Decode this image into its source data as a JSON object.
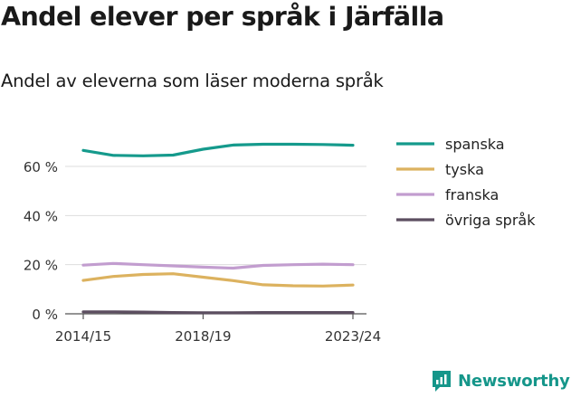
{
  "title": "Andel elever per språk i Järfälla",
  "subtitle": "Andel av eleverna som läser moderna språk",
  "brand": "Newsworthy",
  "chart_data": {
    "type": "line",
    "x": [
      "2014/15",
      "2015/16",
      "2016/17",
      "2017/18",
      "2018/19",
      "2019/20",
      "2020/21",
      "2021/22",
      "2022/23",
      "2023/24"
    ],
    "x_tick_labels": [
      "2014/15",
      "2018/19",
      "2023/24"
    ],
    "y_ticks": [
      0,
      20,
      40,
      60
    ],
    "y_tick_labels": [
      "0 %",
      "20 %",
      "40 %",
      "60 %"
    ],
    "ylim": [
      0,
      72
    ],
    "grid": true,
    "legend_position": "right",
    "series": [
      {
        "name": "spanska",
        "color": "#159a8c",
        "values": [
          66.5,
          64.5,
          64.3,
          64.6,
          67.0,
          68.7,
          69.0,
          69.0,
          68.9,
          68.6
        ]
      },
      {
        "name": "tyska",
        "color": "#dcb25f",
        "values": [
          13.6,
          15.2,
          16.0,
          16.3,
          14.9,
          13.5,
          11.8,
          11.4,
          11.3,
          11.7
        ]
      },
      {
        "name": "franska",
        "color": "#c29dcf",
        "values": [
          19.8,
          20.5,
          20.0,
          19.5,
          19.0,
          18.6,
          19.7,
          20.0,
          20.2,
          20.0
        ]
      },
      {
        "name": "övriga språk",
        "color": "#5c4e60",
        "values": [
          0.8,
          0.8,
          0.7,
          0.5,
          0.4,
          0.4,
          0.5,
          0.5,
          0.5,
          0.5
        ]
      }
    ]
  }
}
